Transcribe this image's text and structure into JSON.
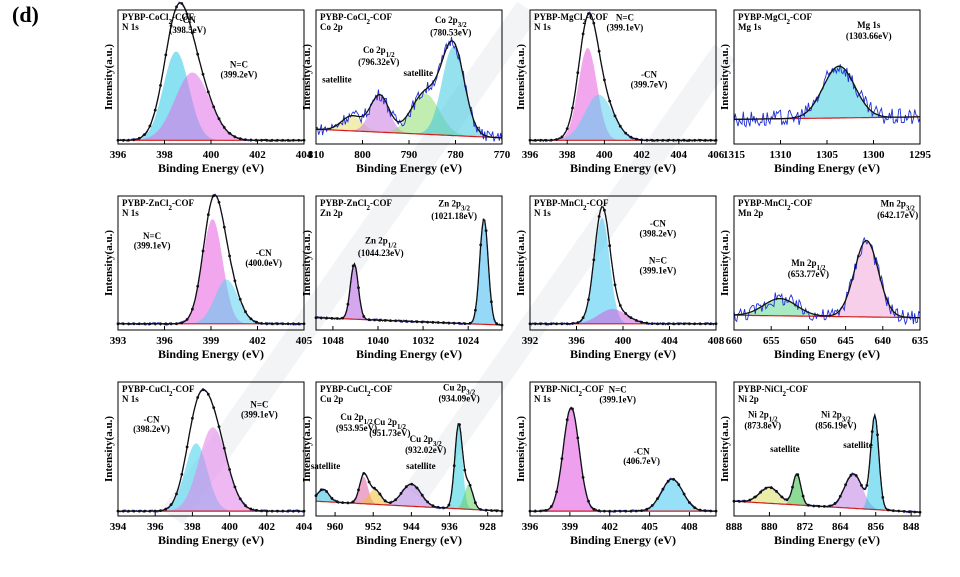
{
  "figure_label": "(d)",
  "chart_data": [
    {
      "type": "line",
      "title": "PYBP-CoCl2-COF",
      "subtitle": "N 1s",
      "xlabel": "Binding Energy (eV)",
      "ylabel": "Intensity(a.u.)",
      "xlim": [
        396,
        404
      ],
      "reversed": false,
      "xticks": [
        396,
        398,
        400,
        402,
        404
      ],
      "peaks": [
        {
          "x": 398.5,
          "h": 0.72,
          "w": 0.55,
          "color": "#29c9e8"
        },
        {
          "x": 399.2,
          "h": 0.55,
          "w": 0.75,
          "color": "#e070e8"
        }
      ],
      "base": [
        0.03,
        0.03
      ],
      "labels": [
        {
          "text": "-CN",
          "x": 399.0,
          "y": 0.98
        },
        {
          "text": "(398.5eV)",
          "x": 399.0,
          "y": 0.9
        },
        {
          "text": "N=C",
          "x": 401.2,
          "y": 0.62
        },
        {
          "text": "(399.2eV)",
          "x": 401.2,
          "y": 0.54
        }
      ]
    },
    {
      "type": "line",
      "title": "PYBP-CoCl2-COF",
      "subtitle": "Co 2p",
      "xlabel": "Binding Energy (eV)",
      "ylabel": "Intensity(a.u.)",
      "xlim": [
        810,
        770
      ],
      "reversed": true,
      "xticks": [
        810,
        800,
        790,
        780,
        770
      ],
      "peaks": [
        {
          "x": 802.3,
          "h": 0.12,
          "w": 2.2,
          "color": "#e8e070"
        },
        {
          "x": 796.3,
          "h": 0.3,
          "w": 2.0,
          "color": "#c878e0"
        },
        {
          "x": 786.5,
          "h": 0.33,
          "w": 3.0,
          "color": "#8ee070"
        },
        {
          "x": 780.5,
          "h": 0.72,
          "w": 2.4,
          "color": "#40c8e0"
        }
      ],
      "base": [
        0.12,
        0.05
      ],
      "noise": 0.1,
      "labels": [
        {
          "text": "Co 2p1/2",
          "x": 796.5,
          "y": 0.74
        },
        {
          "text": "(796.32eV)",
          "x": 796.5,
          "y": 0.64
        },
        {
          "text": "Co 2p3/2",
          "x": 781,
          "y": 0.98
        },
        {
          "text": "(780.53eV)",
          "x": 781,
          "y": 0.88
        },
        {
          "text": "satellite",
          "x": 805.5,
          "y": 0.5
        },
        {
          "text": "satellite",
          "x": 788,
          "y": 0.55
        }
      ]
    },
    {
      "type": "line",
      "title": "PYBP-MgCl2-COF",
      "subtitle": "N 1s",
      "xlabel": "Binding Energy (eV)",
      "ylabel": "Intensity(a.u.)",
      "xlim": [
        396,
        406
      ],
      "reversed": false,
      "xticks": [
        396,
        398,
        400,
        402,
        404,
        406
      ],
      "peaks": [
        {
          "x": 399.1,
          "h": 0.75,
          "w": 0.5,
          "color": "#e85ce0"
        },
        {
          "x": 399.7,
          "h": 0.37,
          "w": 0.75,
          "color": "#5ad0ee"
        }
      ],
      "base": [
        0.03,
        0.03
      ],
      "labels": [
        {
          "text": "N=C",
          "x": 401.1,
          "y": 1.0
        },
        {
          "text": "(399.1eV)",
          "x": 401.1,
          "y": 0.92
        },
        {
          "text": "-CN",
          "x": 402.4,
          "y": 0.54
        },
        {
          "text": "(399.7eV)",
          "x": 402.4,
          "y": 0.46
        }
      ]
    },
    {
      "type": "line",
      "title": "PYBP-MgCl2-COF",
      "subtitle": "Mg 1s",
      "xlabel": "Binding Energy (eV)",
      "ylabel": "Intensity(a.u.)",
      "xlim": [
        1315,
        1295
      ],
      "reversed": true,
      "xticks": [
        1315,
        1310,
        1305,
        1300,
        1295
      ],
      "peaks": [
        {
          "x": 1303.7,
          "h": 0.42,
          "w": 1.7,
          "color": "#40d0e0"
        }
      ],
      "base": [
        0.2,
        0.22
      ],
      "noise": 0.14,
      "labels": [
        {
          "text": "Mg 1s",
          "x": 1300.5,
          "y": 0.94
        },
        {
          "text": "(1303.66eV)",
          "x": 1300.5,
          "y": 0.85
        }
      ]
    },
    {
      "type": "line",
      "title": "PYBP-ZnCl2-COF",
      "subtitle": "N 1s",
      "xlabel": "Binding Energy (eV)",
      "ylabel": "Intensity(a.u.)",
      "xlim": [
        393,
        405
      ],
      "reversed": false,
      "xticks": [
        393,
        396,
        399,
        402,
        405
      ],
      "peaks": [
        {
          "x": 399.1,
          "h": 0.85,
          "w": 0.65,
          "color": "#e85ce0"
        },
        {
          "x": 400.0,
          "h": 0.36,
          "w": 0.75,
          "color": "#5ad0ee"
        }
      ],
      "base": [
        0.05,
        0.05
      ],
      "labels": [
        {
          "text": "N=C",
          "x": 395.2,
          "y": 0.74
        },
        {
          "text": "(399.1eV)",
          "x": 395.2,
          "y": 0.66
        },
        {
          "text": "-CN",
          "x": 402.4,
          "y": 0.6
        },
        {
          "text": "(400.0eV)",
          "x": 402.4,
          "y": 0.52
        }
      ]
    },
    {
      "type": "line",
      "title": "PYBP-ZnCl2-COF",
      "subtitle": "Zn 2p",
      "xlabel": "Binding Energy (eV)",
      "ylabel": "Intensity(a.u.)",
      "xlim": [
        1051,
        1018
      ],
      "reversed": true,
      "xticks": [
        1048,
        1040,
        1032,
        1024
      ],
      "peaks": [
        {
          "x": 1044.2,
          "h": 0.45,
          "w": 0.7,
          "color": "#b05ee0"
        },
        {
          "x": 1021.2,
          "h": 0.86,
          "w": 0.75,
          "color": "#40b8f0"
        }
      ],
      "base": [
        0.1,
        0.04
      ],
      "labels": [
        {
          "text": "Zn 2p1/2",
          "x": 1039.5,
          "y": 0.7
        },
        {
          "text": "(1044.23eV)",
          "x": 1039.5,
          "y": 0.6
        },
        {
          "text": "Zn 2p3/2",
          "x": 1026.5,
          "y": 1.0
        },
        {
          "text": "(1021.18eV)",
          "x": 1026.5,
          "y": 0.9
        }
      ]
    },
    {
      "type": "line",
      "title": "PYBP-MnCl2-COF",
      "subtitle": "N 1s",
      "xlabel": "Binding Energy (eV)",
      "ylabel": "Intensity(a.u.)",
      "xlim": [
        392,
        408
      ],
      "reversed": false,
      "xticks": [
        392,
        396,
        400,
        404,
        408
      ],
      "peaks": [
        {
          "x": 398.2,
          "h": 0.86,
          "w": 0.65,
          "color": "#40c8f0"
        },
        {
          "x": 399.1,
          "h": 0.12,
          "w": 1.2,
          "color": "#d060e0"
        }
      ],
      "base": [
        0.05,
        0.05
      ],
      "labels": [
        {
          "text": "-CN",
          "x": 403,
          "y": 0.84
        },
        {
          "text": "(398.2eV)",
          "x": 403,
          "y": 0.76
        },
        {
          "text": "N=C",
          "x": 403,
          "y": 0.54
        },
        {
          "text": "(399.1eV)",
          "x": 403,
          "y": 0.46
        }
      ]
    },
    {
      "type": "line",
      "title": "PYBP-MnCl2-COF",
      "subtitle": "Mn 2p",
      "xlabel": "Binding Energy (eV)",
      "ylabel": "Intensity(a.u.)",
      "xlim": [
        660,
        635
      ],
      "reversed": true,
      "xticks": [
        660,
        655,
        650,
        645,
        640,
        635
      ],
      "peaks": [
        {
          "x": 653.8,
          "h": 0.14,
          "w": 2.2,
          "color": "#60d890"
        },
        {
          "x": 642.2,
          "h": 0.62,
          "w": 1.6,
          "color": "#f0a8d8"
        }
      ],
      "base": [
        0.12,
        0.1
      ],
      "noise": 0.12,
      "labels": [
        {
          "text": "Mn 2p3/2",
          "x": 638,
          "y": 1.0
        },
        {
          "text": "(642.17eV)",
          "x": 638,
          "y": 0.91
        },
        {
          "text": "Mn 2p1/2",
          "x": 650,
          "y": 0.52
        },
        {
          "text": "(653.77eV)",
          "x": 650,
          "y": 0.43
        }
      ]
    },
    {
      "type": "line",
      "title": "PYBP-CuCl2-COF",
      "subtitle": "N 1s",
      "xlabel": "Binding Energy (eV)",
      "ylabel": "Intensity(a.u.)",
      "xlim": [
        394,
        404
      ],
      "reversed": false,
      "xticks": [
        394,
        396,
        398,
        400,
        402,
        404
      ],
      "peaks": [
        {
          "x": 398.2,
          "h": 0.55,
          "w": 0.6,
          "color": "#3ed0ec"
        },
        {
          "x": 399.1,
          "h": 0.68,
          "w": 0.75,
          "color": "#e080ea"
        }
      ],
      "base": [
        0.04,
        0.04
      ],
      "labels": [
        {
          "text": "-CN",
          "x": 395.8,
          "y": 0.76
        },
        {
          "text": "(398.2eV)",
          "x": 395.8,
          "y": 0.68
        },
        {
          "text": "N=C",
          "x": 401.6,
          "y": 0.88
        },
        {
          "text": "(399.1eV)",
          "x": 401.6,
          "y": 0.8
        }
      ]
    },
    {
      "type": "line",
      "title": "PYBP-CuCl2-COF",
      "subtitle": "Cu 2p",
      "xlabel": "Binding Energy (eV)",
      "ylabel": "Intensity(a.u.)",
      "xlim": [
        964,
        925
      ],
      "reversed": true,
      "xticks": [
        960,
        952,
        944,
        936,
        928
      ],
      "peaks": [
        {
          "x": 962.5,
          "h": 0.1,
          "w": 1.2,
          "color": "#30c0e0"
        },
        {
          "x": 954,
          "h": 0.22,
          "w": 0.9,
          "color": "#e060a0"
        },
        {
          "x": 951.7,
          "h": 0.12,
          "w": 1.3,
          "color": "#f0c030"
        },
        {
          "x": 944,
          "h": 0.18,
          "w": 2.0,
          "color": "#b080e0"
        },
        {
          "x": 934.1,
          "h": 0.68,
          "w": 0.8,
          "color": "#30d0e0"
        },
        {
          "x": 932,
          "h": 0.2,
          "w": 0.9,
          "color": "#60d060"
        }
      ],
      "base": [
        0.12,
        0.04
      ],
      "labels": [
        {
          "text": "Cu 2p3/2",
          "x": 934,
          "y": 1.02
        },
        {
          "text": "(934.09eV)",
          "x": 934,
          "y": 0.93
        },
        {
          "text": "Cu 2p1/2",
          "x": 955.5,
          "y": 0.78
        },
        {
          "text": "(953.95eV)",
          "x": 955.5,
          "y": 0.69
        },
        {
          "text": "Cu 2p1/2",
          "x": 948.5,
          "y": 0.74
        },
        {
          "text": "(951.73eV)",
          "x": 948.5,
          "y": 0.65
        },
        {
          "text": "Cu 2p3/2",
          "x": 941,
          "y": 0.6
        },
        {
          "text": "(932.02eV)",
          "x": 941,
          "y": 0.51
        },
        {
          "text": "satellite",
          "x": 962,
          "y": 0.38
        },
        {
          "text": "satellite",
          "x": 942,
          "y": 0.38
        }
      ]
    },
    {
      "type": "line",
      "title": "PYBP-NiCl2-COF",
      "subtitle": "N 1s",
      "xlabel": "Binding Energy (eV)",
      "ylabel": "Intensity(a.u.)",
      "xlim": [
        396,
        410
      ],
      "reversed": false,
      "xticks": [
        396,
        399,
        402,
        405,
        408
      ],
      "peaks": [
        {
          "x": 399.1,
          "h": 0.84,
          "w": 0.6,
          "color": "#e050e0"
        },
        {
          "x": 406.7,
          "h": 0.26,
          "w": 0.8,
          "color": "#40c8f0"
        }
      ],
      "base": [
        0.04,
        0.04
      ],
      "labels": [
        {
          "text": "N=C",
          "x": 402.6,
          "y": 1.0
        },
        {
          "text": "(399.1eV)",
          "x": 402.6,
          "y": 0.92
        },
        {
          "text": "-CN",
          "x": 404.4,
          "y": 0.5
        },
        {
          "text": "(406.7eV)",
          "x": 404.4,
          "y": 0.42
        }
      ]
    },
    {
      "type": "line",
      "title": "PYBP-NiCl2-COF",
      "subtitle": "Ni 2p",
      "xlabel": "Binding Energy (eV)",
      "ylabel": "Intensity(a.u.)",
      "xlim": [
        888,
        846
      ],
      "reversed": true,
      "xticks": [
        888,
        880,
        872,
        864,
        856,
        848
      ],
      "peaks": [
        {
          "x": 880,
          "h": 0.13,
          "w": 2.2,
          "color": "#d8e060"
        },
        {
          "x": 873.8,
          "h": 0.25,
          "w": 0.9,
          "color": "#30c040"
        },
        {
          "x": 861,
          "h": 0.28,
          "w": 2.0,
          "color": "#c080e0"
        },
        {
          "x": 856.2,
          "h": 0.75,
          "w": 0.9,
          "color": "#30c8e8"
        }
      ],
      "base": [
        0.12,
        0.03
      ],
      "labels": [
        {
          "text": "Ni 2p1/2",
          "x": 881.5,
          "y": 0.8
        },
        {
          "text": "(873.8eV)",
          "x": 881.5,
          "y": 0.71
        },
        {
          "text": "Ni 2p3/2",
          "x": 865,
          "y": 0.8
        },
        {
          "text": "(856.19eV)",
          "x": 865,
          "y": 0.71
        },
        {
          "text": "satellite",
          "x": 876.5,
          "y": 0.52
        },
        {
          "text": "satellite",
          "x": 860,
          "y": 0.55
        }
      ]
    }
  ]
}
